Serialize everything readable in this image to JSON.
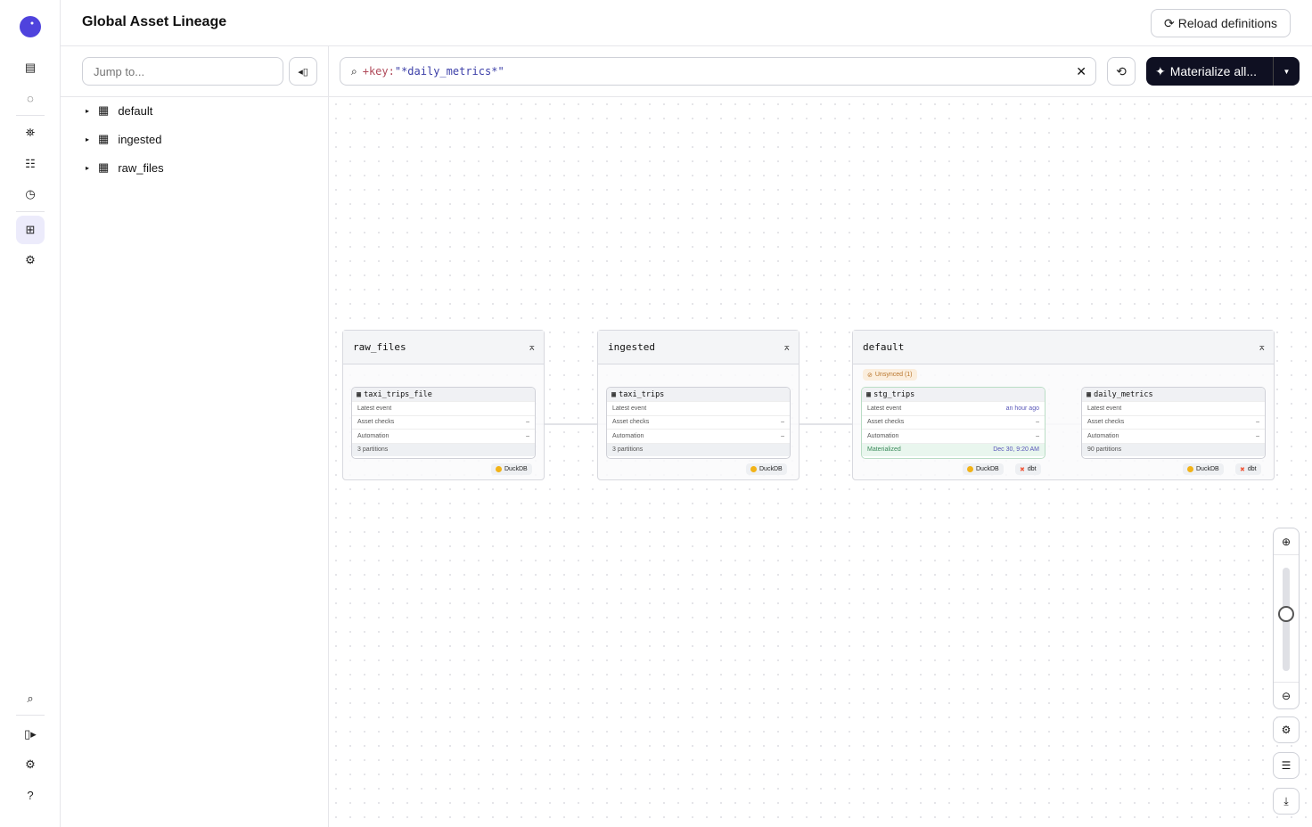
{
  "header": {
    "title": "Global Asset Lineage",
    "reload_label": "Reload definitions"
  },
  "rail": {
    "icons": [
      "dagster-logo",
      "overview-icon",
      "runs-icon",
      "deployment-icon",
      "jobs-icon",
      "schedules-icon",
      "asset-lineage-icon",
      "settings-icon",
      "search-icon",
      "collapse-icon",
      "user-settings-icon",
      "help-icon"
    ],
    "active": "asset-lineage-icon"
  },
  "sidebar": {
    "jump_placeholder": "Jump to...",
    "items": [
      {
        "label": "default"
      },
      {
        "label": "ingested"
      },
      {
        "label": "raw_files"
      }
    ]
  },
  "toolbar": {
    "query_prefix": "+key:",
    "query_value": "\"*daily_metrics*\"",
    "materialize_label": "Materialize all..."
  },
  "graph": {
    "groups": [
      {
        "name": "raw_files",
        "assets": [
          {
            "name": "taxi_trips_file",
            "latest_event": "",
            "asset_checks": "–",
            "automation": "–",
            "footer": "3 partitions",
            "tags": [
              "DuckDB"
            ]
          }
        ]
      },
      {
        "name": "ingested",
        "assets": [
          {
            "name": "taxi_trips",
            "latest_event": "",
            "asset_checks": "–",
            "automation": "–",
            "footer": "3 partitions",
            "tags": [
              "DuckDB"
            ]
          }
        ]
      },
      {
        "name": "default",
        "badge": "Unsynced (1)",
        "assets": [
          {
            "name": "stg_trips",
            "latest_event": "an hour ago",
            "asset_checks": "–",
            "automation": "–",
            "footer": "Materialized",
            "footer_value": "Dec 30, 9:20 AM",
            "tags": [
              "DuckDB",
              "dbt"
            ]
          },
          {
            "name": "daily_metrics",
            "latest_event": "",
            "asset_checks": "–",
            "automation": "–",
            "footer": "90 partitions",
            "tags": [
              "DuckDB",
              "dbt"
            ]
          }
        ]
      }
    ],
    "row_labels": {
      "latest": "Latest event",
      "checks": "Asset checks",
      "automation": "Automation"
    }
  },
  "zoom": {
    "level": 0.55
  },
  "colors": {
    "accent": "#4f43dd",
    "primary_button": "#0f1022",
    "materialized": "#3a8a5a",
    "unsynced": "#b8742a",
    "link": "#5856b8"
  }
}
